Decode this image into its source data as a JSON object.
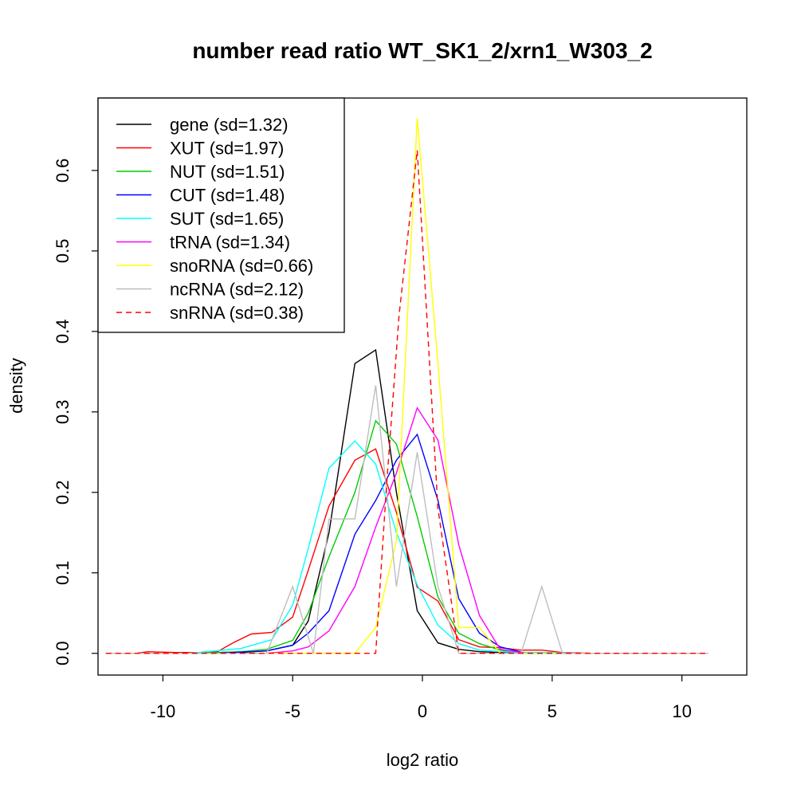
{
  "chart_data": {
    "type": "line",
    "title": "number read ratio WT_SK1_2/xrn1_W303_2",
    "xlabel": "log2 ratio",
    "ylabel": "density",
    "xlim": [
      -12.5,
      12.5
    ],
    "ylim": [
      -0.027,
      0.69
    ],
    "xticks": [
      -10,
      -5,
      0,
      5,
      10
    ],
    "yticks": [
      0.0,
      0.1,
      0.2,
      0.3,
      0.4,
      0.5,
      0.6
    ],
    "ytick_labels": [
      "0.0",
      "0.1",
      "0.2",
      "0.3",
      "0.4",
      "0.5",
      "0.6"
    ],
    "grid": false,
    "legend_position": "top-left",
    "series": [
      {
        "name": "gene (sd=1.32)",
        "color": "#000000",
        "dash": "solid",
        "x": [
          -12.2,
          -10,
          -8,
          -7,
          -6,
          -5,
          -4.4,
          -3.6,
          -2.6,
          -1.8,
          -1.0,
          -0.2,
          0.6,
          1.4,
          2.2,
          3.0,
          4.0,
          6.0,
          11.0
        ],
        "y": [
          0.0,
          0.0,
          0.0,
          0.001,
          0.003,
          0.01,
          0.04,
          0.15,
          0.36,
          0.377,
          0.2,
          0.053,
          0.013,
          0.005,
          0.002,
          0.001,
          0.0,
          0.0,
          0.0
        ]
      },
      {
        "name": "XUT (sd=1.97)",
        "color": "#ff0000",
        "dash": "solid",
        "x": [
          -12.2,
          -11,
          -10.6,
          -9.5,
          -8.5,
          -7.9,
          -7.3,
          -6.6,
          -5.8,
          -5.0,
          -4.4,
          -3.6,
          -2.6,
          -1.8,
          -1.0,
          -0.2,
          0.6,
          1.4,
          2.2,
          3.0,
          3.8,
          4.6,
          5.4,
          6.5,
          11.0
        ],
        "y": [
          0.0,
          0.0,
          0.002,
          0.001,
          0.001,
          0.002,
          0.013,
          0.024,
          0.026,
          0.045,
          0.103,
          0.183,
          0.24,
          0.254,
          0.175,
          0.082,
          0.065,
          0.017,
          0.008,
          0.007,
          0.004,
          0.004,
          0.001,
          0.0,
          0.0
        ]
      },
      {
        "name": "NUT (sd=1.51)",
        "color": "#00cc00",
        "dash": "solid",
        "x": [
          -12.2,
          -9,
          -7,
          -6,
          -5,
          -4.4,
          -3.6,
          -2.6,
          -1.8,
          -1.0,
          -0.2,
          0.6,
          1.4,
          2.2,
          3.0,
          4.0,
          11.0
        ],
        "y": [
          0.0,
          0.0,
          0.002,
          0.005,
          0.016,
          0.05,
          0.12,
          0.2,
          0.289,
          0.26,
          0.17,
          0.07,
          0.025,
          0.012,
          0.004,
          0.0,
          0.0
        ]
      },
      {
        "name": "CUT (sd=1.48)",
        "color": "#0000ff",
        "dash": "solid",
        "x": [
          -12.2,
          -8,
          -6,
          -5,
          -4.4,
          -3.6,
          -2.6,
          -1.8,
          -1.0,
          -0.2,
          0.6,
          1.4,
          2.2,
          3.0,
          4.0,
          11.0
        ],
        "y": [
          0.0,
          0.0,
          0.003,
          0.01,
          0.025,
          0.053,
          0.148,
          0.19,
          0.24,
          0.272,
          0.19,
          0.068,
          0.025,
          0.008,
          0.0,
          0.0
        ]
      },
      {
        "name": "SUT (sd=1.65)",
        "color": "#00ffff",
        "dash": "solid",
        "x": [
          -12.2,
          -9,
          -7,
          -5.8,
          -5.0,
          -4.4,
          -3.6,
          -2.6,
          -1.8,
          -1.0,
          -0.2,
          0.6,
          1.4,
          2.2,
          3.0,
          4.0,
          5.0,
          6.0,
          11.0
        ],
        "y": [
          0.0,
          0.0,
          0.006,
          0.017,
          0.06,
          0.13,
          0.23,
          0.264,
          0.235,
          0.15,
          0.085,
          0.035,
          0.012,
          0.004,
          0.002,
          0.001,
          0.001,
          0.0,
          0.0
        ]
      },
      {
        "name": "tRNA (sd=1.34)",
        "color": "#ff00ff",
        "dash": "solid",
        "x": [
          -12.2,
          -6,
          -5,
          -4.4,
          -3.6,
          -2.6,
          -1.8,
          -1.0,
          -0.2,
          0.6,
          1.4,
          2.2,
          3.0,
          4.0,
          11.0
        ],
        "y": [
          0.0,
          0.0,
          0.003,
          0.008,
          0.028,
          0.083,
          0.157,
          0.224,
          0.305,
          0.265,
          0.135,
          0.047,
          0.005,
          0.0,
          0.0
        ]
      },
      {
        "name": "snoRNA (sd=0.66)",
        "color": "#ffff00",
        "dash": "solid",
        "x": [
          -12.2,
          -2.6,
          -1.8,
          -1.0,
          -0.2,
          0.6,
          1.4,
          2.2,
          3.0,
          11.0
        ],
        "y": [
          0.0,
          0.0,
          0.032,
          0.14,
          0.665,
          0.36,
          0.032,
          0.032,
          0.0,
          0.0
        ]
      },
      {
        "name": "ncRNA (sd=2.12)",
        "color": "#bebebe",
        "dash": "solid",
        "x": [
          -12.2,
          -6.0,
          -5.0,
          -4.2,
          -3.6,
          -2.6,
          -1.8,
          -1.0,
          -0.2,
          0.6,
          1.4,
          3.8,
          4.6,
          5.4,
          11.0
        ],
        "y": [
          0.0,
          0.0,
          0.083,
          0.0,
          0.167,
          0.167,
          0.333,
          0.083,
          0.25,
          0.083,
          0.0,
          0.0,
          0.083,
          0.0,
          0.0
        ]
      },
      {
        "name": "snRNA (sd=0.38)",
        "color": "#ff0000",
        "dash": "dashed",
        "x": [
          -12.2,
          -1.8,
          -1.4,
          -0.9,
          -0.2,
          0.6,
          1.4,
          11.0
        ],
        "y": [
          0.0,
          0.0,
          0.2,
          0.42,
          0.625,
          0.18,
          0.0,
          0.0
        ]
      }
    ]
  }
}
